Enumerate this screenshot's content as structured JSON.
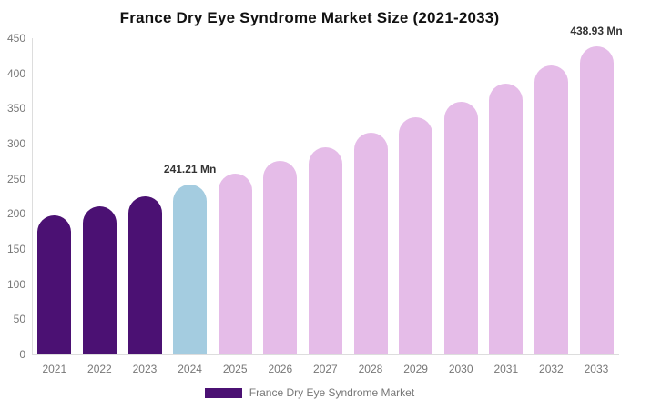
{
  "title": "France Dry Eye Syndrome Market Size (2021-2033)",
  "legend": {
    "label": "France Dry Eye Syndrome Market",
    "swatch_color": "#4B1173"
  },
  "colors": {
    "historical_bar": "#4B1173",
    "base_year_bar": "#A4CCE0",
    "forecast_bar": "#E5BCE8",
    "axis_line": "#dddddd",
    "tick_text": "#777777",
    "title_text": "#111111",
    "annotation_text": "#333333"
  },
  "chart_data": {
    "type": "bar",
    "title": "France Dry Eye Syndrome Market Size (2021-2033)",
    "xlabel": "",
    "ylabel": "",
    "categories": [
      "2021",
      "2022",
      "2023",
      "2024",
      "2025",
      "2026",
      "2027",
      "2028",
      "2029",
      "2030",
      "2031",
      "2032",
      "2033"
    ],
    "series": [
      {
        "name": "France Dry Eye Syndrome Market",
        "values": [
          197.4,
          211.0,
          225.6,
          241.21,
          257.9,
          275.7,
          294.8,
          315.1,
          336.9,
          360.1,
          385.0,
          411.6,
          438.93
        ]
      }
    ],
    "bar_colors": [
      "#4B1173",
      "#4B1173",
      "#4B1173",
      "#A4CCE0",
      "#E5BCE8",
      "#E5BCE8",
      "#E5BCE8",
      "#E5BCE8",
      "#E5BCE8",
      "#E5BCE8",
      "#E5BCE8",
      "#E5BCE8",
      "#E5BCE8"
    ],
    "ylim": [
      0,
      450
    ],
    "yticks": [
      0,
      50,
      100,
      150,
      200,
      250,
      300,
      350,
      400,
      450
    ],
    "grid": false,
    "legend_position": "bottom",
    "annotations": [
      {
        "category": "2024",
        "text": "241.21 Mn"
      },
      {
        "category": "2033",
        "text": "438.93 Mn"
      }
    ],
    "unit": "Mn"
  }
}
